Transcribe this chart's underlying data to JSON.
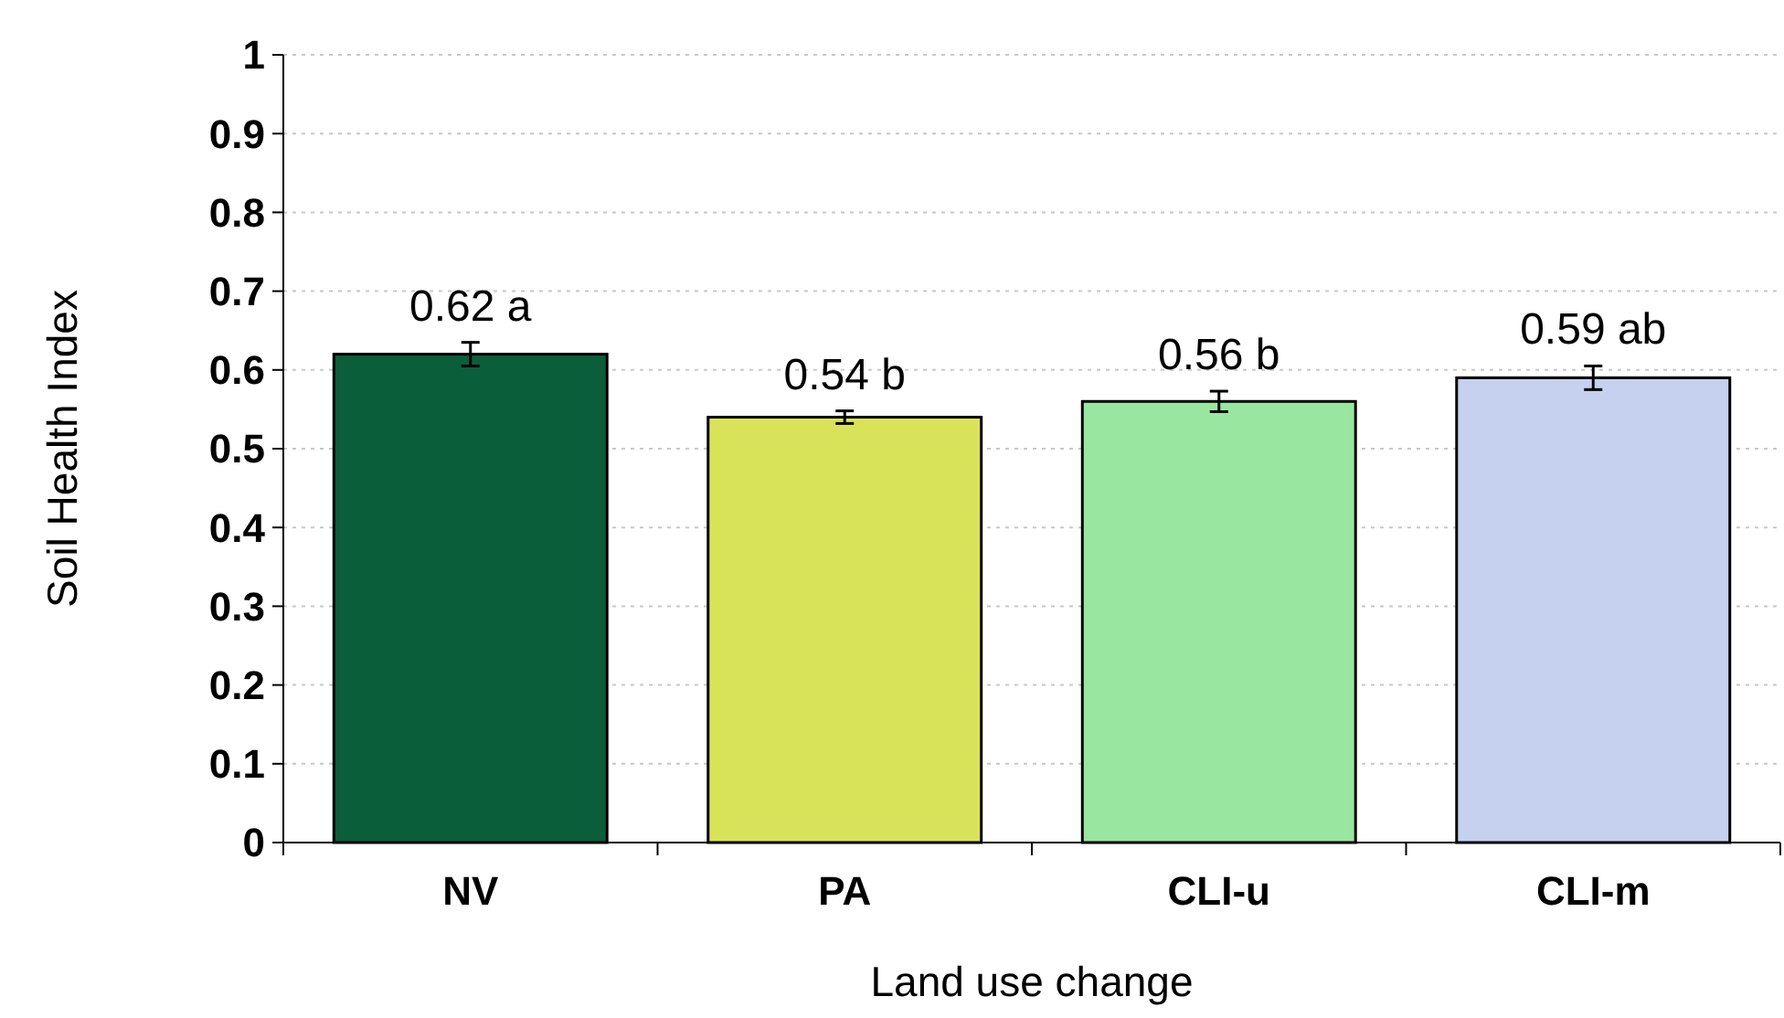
{
  "chart_data": {
    "type": "bar",
    "xlabel": "Land use change",
    "ylabel": "Soil Health Index",
    "categories": [
      "NV",
      "PA",
      "CLI-u",
      "CLI-m"
    ],
    "values": [
      0.62,
      0.54,
      0.56,
      0.59
    ],
    "colors": [
      "#0b5e3a",
      "#d9e35a",
      "#99e6a0",
      "#c5d1ee"
    ],
    "errors": [
      0.015,
      0.008,
      0.013,
      0.015
    ],
    "value_labels": [
      "0.62 a",
      "0.54 b",
      "0.56 b",
      "0.59 ab"
    ],
    "ylim": [
      0,
      1
    ],
    "yticks": [
      0,
      0.1,
      0.2,
      0.3,
      0.4,
      0.5,
      0.6,
      0.7,
      0.8,
      0.9,
      1
    ],
    "grid": "y"
  }
}
